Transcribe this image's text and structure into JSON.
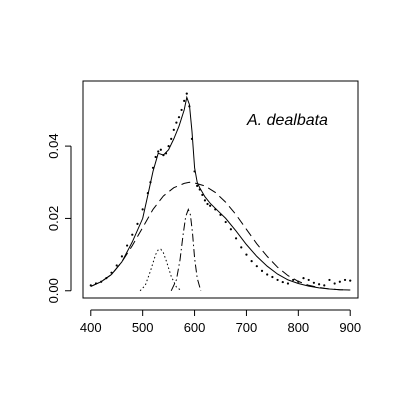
{
  "chart_data": {
    "type": "scatter",
    "title": "",
    "xlabel": "",
    "ylabel": "",
    "annotation": "A. dealbata",
    "xlim": [
      385,
      915
    ],
    "ylim": [
      -0.002,
      0.058
    ],
    "x_ticks": [
      400,
      500,
      600,
      700,
      800,
      900
    ],
    "y_ticks": [
      0.0,
      0.02,
      0.04
    ],
    "y_tick_labels": [
      "0.00",
      "0.02",
      "0.04"
    ],
    "grid": false,
    "legend": "none",
    "observed_points": {
      "name": "",
      "x": [
        400,
        410,
        420,
        430,
        440,
        450,
        460,
        470,
        480,
        490,
        500,
        510,
        515,
        520,
        525,
        530,
        535,
        540,
        545,
        550,
        555,
        560,
        565,
        570,
        575,
        580,
        585,
        590,
        595,
        600,
        605,
        610,
        615,
        620,
        625,
        630,
        640,
        650,
        660,
        670,
        680,
        690,
        700,
        710,
        720,
        730,
        740,
        750,
        760,
        770,
        780,
        790,
        800,
        810,
        820,
        830,
        840,
        850,
        860,
        870,
        880,
        890,
        900
      ],
      "y": [
        0.0015,
        0.002,
        0.0025,
        0.0035,
        0.005,
        0.007,
        0.0095,
        0.0125,
        0.0155,
        0.0185,
        0.0225,
        0.027,
        0.03,
        0.034,
        0.037,
        0.0385,
        0.039,
        0.0375,
        0.038,
        0.04,
        0.042,
        0.0445,
        0.0465,
        0.048,
        0.05,
        0.0525,
        0.0545,
        0.051,
        0.042,
        0.033,
        0.029,
        0.028,
        0.0265,
        0.025,
        0.024,
        0.0235,
        0.0225,
        0.021,
        0.019,
        0.017,
        0.0145,
        0.012,
        0.01,
        0.0082,
        0.0068,
        0.0055,
        0.0045,
        0.0038,
        0.003,
        0.0024,
        0.002,
        0.003,
        0.0025,
        0.0035,
        0.003,
        0.0022,
        0.0018,
        0.0015,
        0.003,
        0.002,
        0.0025,
        0.003,
        0.0028
      ]
    },
    "fitted_total": {
      "name": "",
      "x": [
        400,
        420,
        440,
        460,
        480,
        500,
        510,
        520,
        530,
        540,
        550,
        560,
        570,
        580,
        585,
        590,
        595,
        600,
        605,
        610,
        620,
        630,
        640,
        660,
        680,
        700,
        720,
        740,
        760,
        780,
        800,
        820,
        840,
        860,
        880,
        900
      ],
      "y": [
        0.0012,
        0.0025,
        0.0045,
        0.008,
        0.0135,
        0.02,
        0.0265,
        0.033,
        0.038,
        0.0375,
        0.039,
        0.042,
        0.0455,
        0.05,
        0.0535,
        0.0515,
        0.044,
        0.034,
        0.03,
        0.0285,
        0.026,
        0.0242,
        0.0228,
        0.02,
        0.0165,
        0.0128,
        0.0095,
        0.0068,
        0.0046,
        0.003,
        0.002,
        0.0013,
        0.0008,
        0.0005,
        0.0003,
        0.0002
      ]
    },
    "components": [
      {
        "name": "",
        "style": "longdash",
        "x": [
          400,
          420,
          440,
          460,
          480,
          500,
          520,
          540,
          560,
          580,
          590,
          600,
          620,
          640,
          660,
          680,
          700,
          720,
          740,
          760,
          780,
          800,
          820,
          840,
          860,
          880,
          900
        ],
        "y": [
          0.0012,
          0.0025,
          0.0045,
          0.008,
          0.0125,
          0.0175,
          0.0225,
          0.0262,
          0.0285,
          0.0297,
          0.03,
          0.0298,
          0.029,
          0.0272,
          0.0245,
          0.021,
          0.017,
          0.013,
          0.0095,
          0.0065,
          0.0042,
          0.0026,
          0.0015,
          0.0009,
          0.0005,
          0.0003,
          0.0002
        ]
      },
      {
        "name": "",
        "style": "dotted",
        "x": [
          495,
          505,
          515,
          525,
          530,
          535,
          540,
          545,
          555,
          565,
          575
        ],
        "y": [
          0.0,
          0.0015,
          0.0055,
          0.01,
          0.0113,
          0.0115,
          0.0105,
          0.0085,
          0.004,
          0.001,
          0.0
        ]
      },
      {
        "name": "",
        "style": "dashdot",
        "x": [
          555,
          565,
          572,
          578,
          583,
          588,
          592,
          596,
          600,
          605,
          612
        ],
        "y": [
          0.0,
          0.003,
          0.0085,
          0.0155,
          0.0205,
          0.0225,
          0.021,
          0.016,
          0.009,
          0.0035,
          0.0
        ]
      }
    ]
  }
}
